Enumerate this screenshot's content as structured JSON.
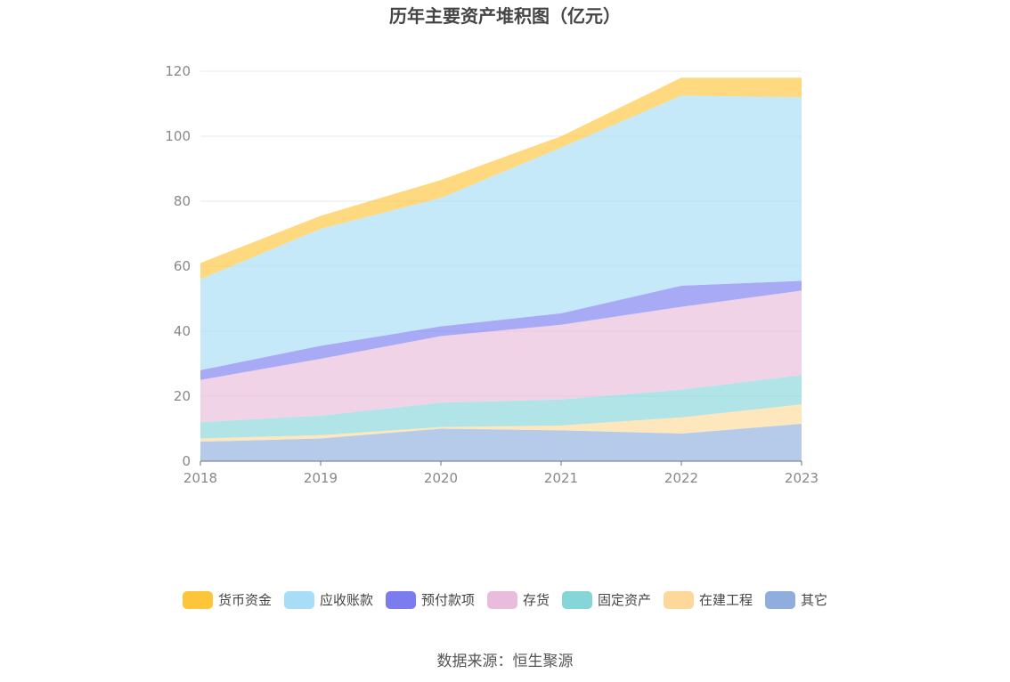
{
  "chart_data": {
    "type": "area",
    "stacked": true,
    "title": "历年主要资产堆积图（亿元）",
    "categories": [
      "2018",
      "2019",
      "2020",
      "2021",
      "2022",
      "2023"
    ],
    "ylim": [
      0,
      120
    ],
    "yticks": [
      0,
      20,
      40,
      60,
      80,
      100,
      120
    ],
    "grid": true,
    "legend_position": "bottom",
    "series": [
      {
        "name": "其它",
        "color": "#8FAEDD",
        "values": [
          6.0,
          7.0,
          10.0,
          9.5,
          8.5,
          11.5
        ]
      },
      {
        "name": "在建工程",
        "color": "#FDD89A",
        "values": [
          1.0,
          1.0,
          0.5,
          1.5,
          5.0,
          6.0
        ]
      },
      {
        "name": "固定资产",
        "color": "#86D6D8",
        "values": [
          5.0,
          6.0,
          7.5,
          8.0,
          8.5,
          9.0
        ]
      },
      {
        "name": "存货",
        "color": "#EABCDB",
        "values": [
          13.0,
          17.5,
          20.5,
          23.0,
          25.5,
          26.0
        ]
      },
      {
        "name": "预付款项",
        "color": "#7B7CF0",
        "values": [
          3.0,
          4.0,
          3.0,
          3.5,
          6.5,
          3.0
        ]
      },
      {
        "name": "应收账款",
        "color": "#A7DDF7",
        "values": [
          28.0,
          36.0,
          39.5,
          51.0,
          58.5,
          56.5
        ]
      },
      {
        "name": "货币资金",
        "color": "#FDC53A",
        "values": [
          5.0,
          4.0,
          5.5,
          3.5,
          5.5,
          6.0
        ]
      }
    ]
  },
  "legend_order": [
    "货币资金",
    "应收账款",
    "预付款项",
    "存货",
    "固定资产",
    "在建工程",
    "其它"
  ],
  "source": "数据来源：恒生聚源"
}
